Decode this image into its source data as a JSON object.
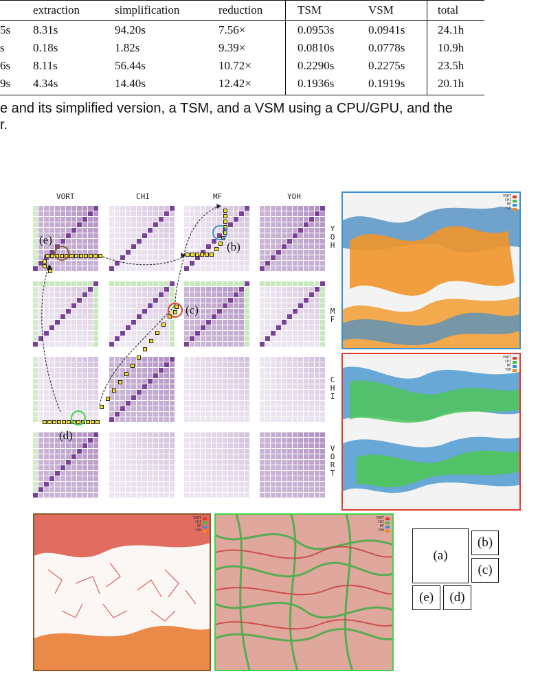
{
  "table": {
    "headers": [
      "extraction",
      "simplification",
      "reduction",
      "TSM",
      "VSM",
      "total"
    ],
    "rows": [
      {
        "lead": "5s",
        "cells": [
          "8.31s",
          "94.20s",
          "7.56×",
          "0.0953s",
          "0.0941s",
          "24.1h"
        ]
      },
      {
        "lead": "s",
        "cells": [
          "0.18s",
          "1.82s",
          "9.39×",
          "0.0810s",
          "0.0778s",
          "10.9h"
        ]
      },
      {
        "lead": "6s",
        "cells": [
          "8.11s",
          "56.44s",
          "10.72×",
          "0.2290s",
          "0.2275s",
          "23.5h"
        ]
      },
      {
        "lead": "9s",
        "cells": [
          "4.34s",
          "14.40s",
          "12.42×",
          "0.1936s",
          "0.1919s",
          "20.1h"
        ]
      }
    ]
  },
  "caption": {
    "line1": "e and its simplified version, a TSM, and a VSM using a CPU/GPU, and the",
    "line2": "r."
  },
  "matrix": {
    "columns": [
      "VORT",
      "CHI",
      "MF",
      "YOH"
    ],
    "rows": [
      "YOH",
      "MF",
      "CHI",
      "VORT"
    ]
  },
  "callouts": {
    "b": "(b)",
    "c": "(c)",
    "d": "(d)",
    "e": "(e)"
  },
  "legend": [
    "VORT",
    "CHI",
    "MF",
    "YOH"
  ],
  "colors": {
    "vort": "#e23b2a",
    "chi": "#3fbf4a",
    "mf": "#3a8fd6",
    "yoh": "#f08a1e",
    "view_b_border": "#3a8fd6",
    "view_c_border": "#e23b2a",
    "view_e_border": "#8a5a2a",
    "view_d_border": "#3fd34a",
    "purple": "#6a2c8c",
    "green": "#8fd07a"
  },
  "key": {
    "a": "(a)",
    "b": "(b)",
    "c": "(c)",
    "d": "(d)",
    "e": "(e)"
  }
}
